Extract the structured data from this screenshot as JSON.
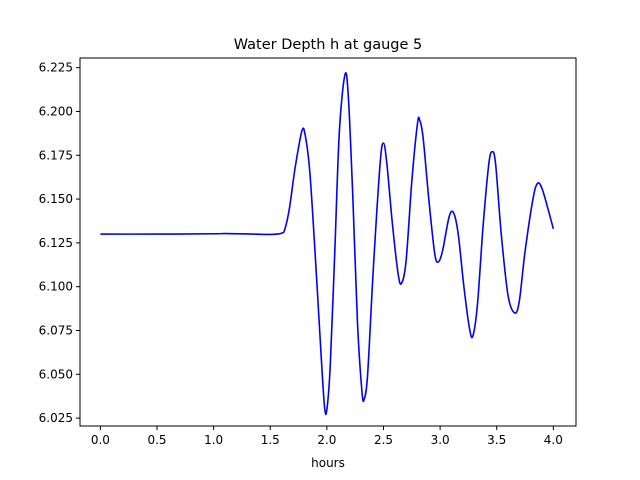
{
  "chart_data": {
    "type": "line",
    "title": "Water Depth h at gauge 5",
    "xlabel": "hours",
    "ylabel": "",
    "xlim": [
      -0.18,
      4.2
    ],
    "ylim": [
      6.0205,
      6.2305
    ],
    "xticks": [
      0.0,
      0.5,
      1.0,
      1.5,
      2.0,
      2.5,
      3.0,
      3.5,
      4.0
    ],
    "xtick_labels": [
      "0.0",
      "0.5",
      "1.0",
      "1.5",
      "2.0",
      "2.5",
      "3.0",
      "3.5",
      "4.0"
    ],
    "yticks": [
      6.025,
      6.05,
      6.075,
      6.1,
      6.125,
      6.15,
      6.175,
      6.2,
      6.225
    ],
    "ytick_labels": [
      "6.025",
      "6.050",
      "6.075",
      "6.100",
      "6.125",
      "6.150",
      "6.175",
      "6.200",
      "6.225"
    ],
    "grid": false,
    "series": [
      {
        "color": "#0000ff",
        "points": [
          [
            0.0,
            6.13
          ],
          [
            0.5,
            6.13
          ],
          [
            1.0,
            6.1302
          ],
          [
            1.1,
            6.1303
          ],
          [
            1.3,
            6.1301
          ],
          [
            1.5,
            6.1298
          ],
          [
            1.6,
            6.1305
          ],
          [
            1.63,
            6.133
          ],
          [
            1.67,
            6.145
          ],
          [
            1.72,
            6.168
          ],
          [
            1.78,
            6.189
          ],
          [
            1.81,
            6.186
          ],
          [
            1.85,
            6.165
          ],
          [
            1.9,
            6.115
          ],
          [
            1.95,
            6.06
          ],
          [
            1.98,
            6.031
          ],
          [
            2.0,
            6.03
          ],
          [
            2.03,
            6.055
          ],
          [
            2.07,
            6.12
          ],
          [
            2.11,
            6.188
          ],
          [
            2.16,
            6.221
          ],
          [
            2.19,
            6.208
          ],
          [
            2.23,
            6.15
          ],
          [
            2.27,
            6.08
          ],
          [
            2.31,
            6.04
          ],
          [
            2.33,
            6.036
          ],
          [
            2.36,
            6.05
          ],
          [
            2.41,
            6.11
          ],
          [
            2.47,
            6.17
          ],
          [
            2.5,
            6.182
          ],
          [
            2.53,
            6.17
          ],
          [
            2.58,
            6.135
          ],
          [
            2.63,
            6.107
          ],
          [
            2.66,
            6.102
          ],
          [
            2.7,
            6.115
          ],
          [
            2.75,
            6.16
          ],
          [
            2.8,
            6.193
          ],
          [
            2.82,
            6.195
          ],
          [
            2.85,
            6.185
          ],
          [
            2.9,
            6.15
          ],
          [
            2.95,
            6.12
          ],
          [
            2.98,
            6.114
          ],
          [
            3.02,
            6.12
          ],
          [
            3.08,
            6.14
          ],
          [
            3.12,
            6.142
          ],
          [
            3.16,
            6.13
          ],
          [
            3.21,
            6.1
          ],
          [
            3.26,
            6.076
          ],
          [
            3.29,
            6.072
          ],
          [
            3.33,
            6.09
          ],
          [
            3.38,
            6.135
          ],
          [
            3.43,
            6.17
          ],
          [
            3.46,
            6.177
          ],
          [
            3.49,
            6.17
          ],
          [
            3.54,
            6.13
          ],
          [
            3.6,
            6.095
          ],
          [
            3.66,
            6.085
          ],
          [
            3.7,
            6.092
          ],
          [
            3.75,
            6.12
          ],
          [
            3.82,
            6.15
          ],
          [
            3.86,
            6.159
          ],
          [
            3.9,
            6.156
          ],
          [
            3.95,
            6.145
          ],
          [
            4.0,
            6.133
          ]
        ]
      }
    ]
  }
}
